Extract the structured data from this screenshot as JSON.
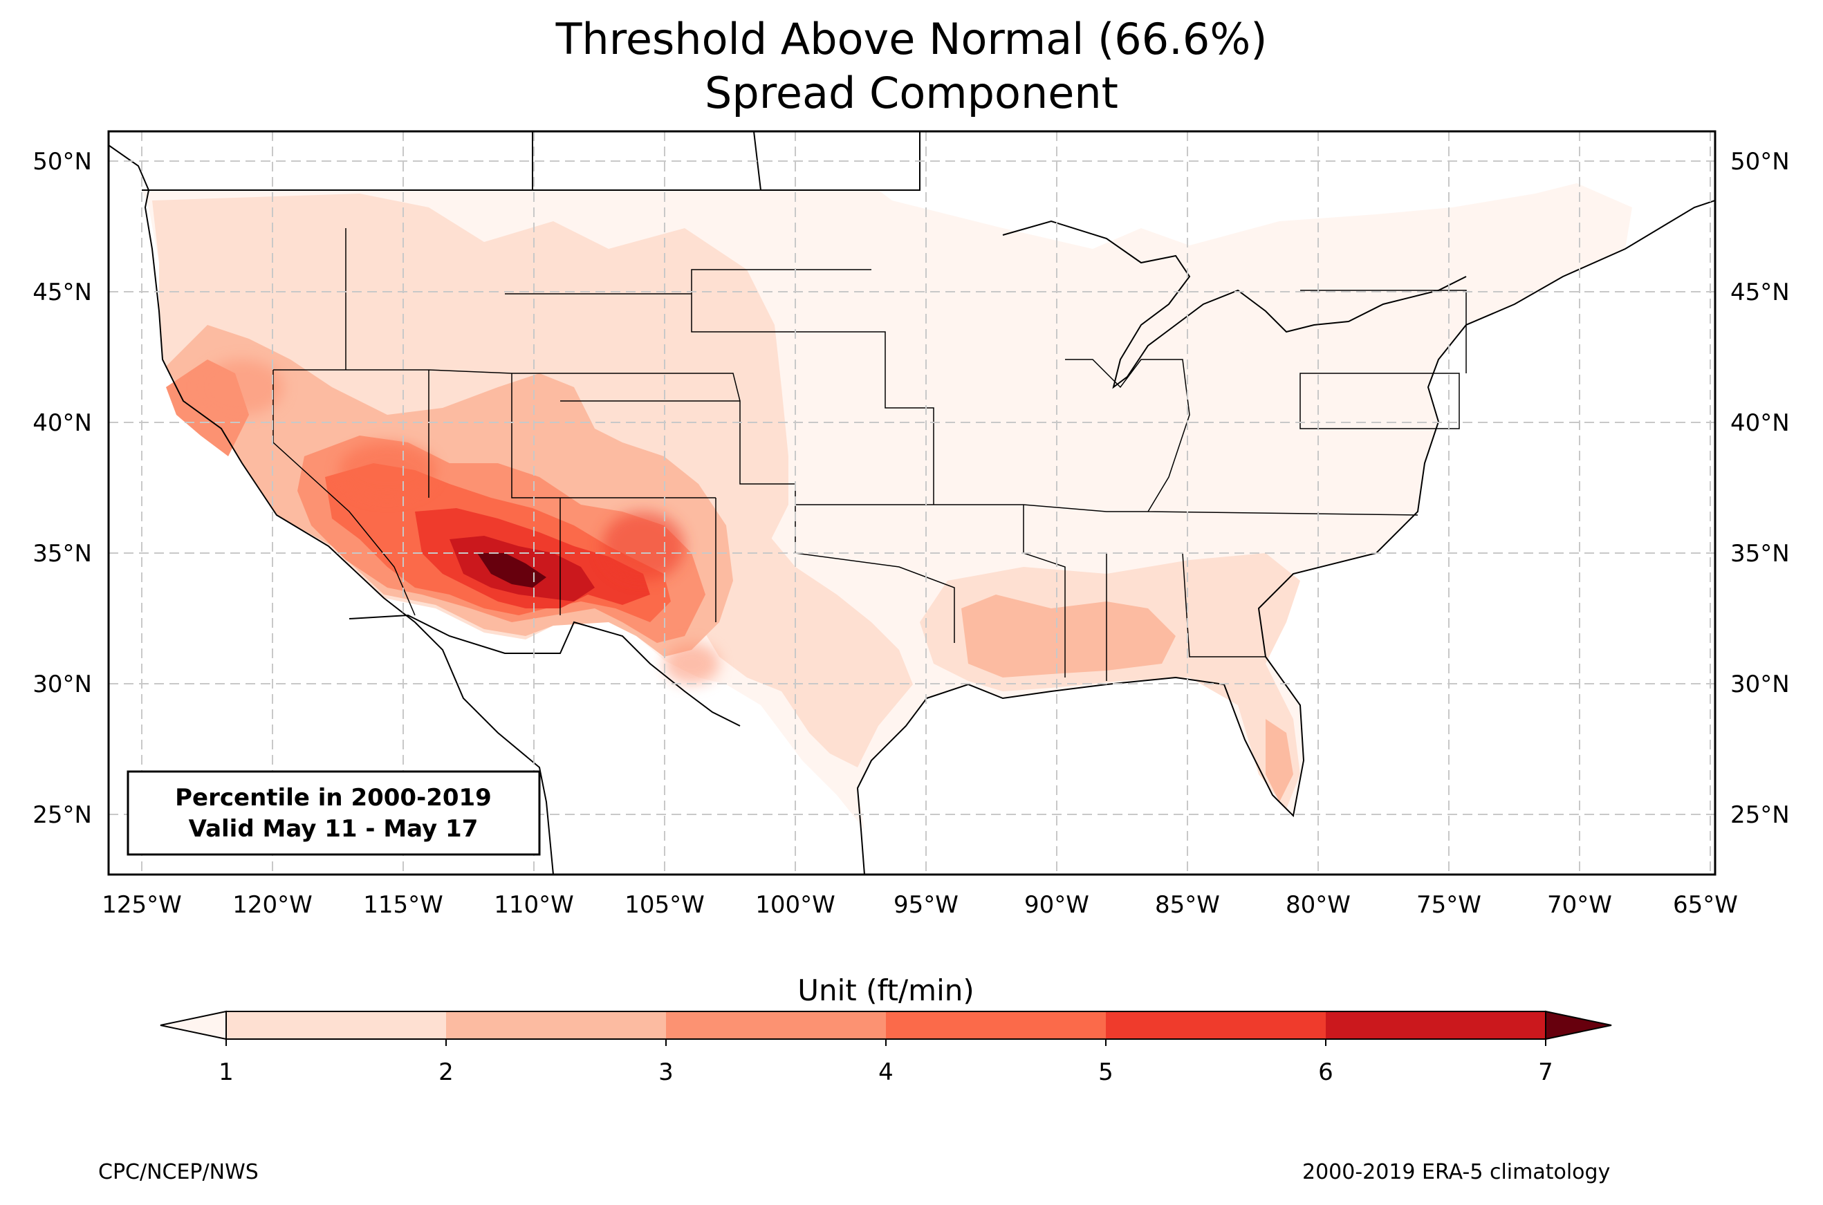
{
  "title": {
    "line1": "Threshold Above Normal (66.6%)",
    "line2": "Spread Component"
  },
  "map": {
    "type": "filled contour map (CONUS)",
    "lon_range": [
      -126.3,
      -64.8
    ],
    "lat_range": [
      22.7,
      51.2
    ],
    "gridlines": "dashed light gray",
    "lon_ticks": [
      "125°W",
      "120°W",
      "115°W",
      "110°W",
      "105°W",
      "100°W",
      "95°W",
      "90°W",
      "85°W",
      "80°W",
      "75°W",
      "70°W",
      "65°W"
    ],
    "lat_ticks": [
      "50°N",
      "45°N",
      "40°N",
      "35°N",
      "30°N",
      "25°N"
    ],
    "label_box": {
      "line1": "Percentile in 2000-2019",
      "line2": "Valid May 11 - May 17"
    },
    "max_region": "Arizona / New Mexico (values > 6 ft/min)"
  },
  "colorbar": {
    "label": "Unit (ft/min)",
    "ticks": [
      "1",
      "2",
      "3",
      "4",
      "5",
      "6",
      "7"
    ],
    "colors": [
      "#fee0d2",
      "#fcbba1",
      "#fc9272",
      "#fb6a4a",
      "#ef3b2c",
      "#cb181d",
      "#a50f15",
      "#67000d"
    ],
    "extend": "both"
  },
  "footer": {
    "left": "CPC/NCEP/NWS",
    "right": "2000-2019 ERA-5 climatology"
  }
}
